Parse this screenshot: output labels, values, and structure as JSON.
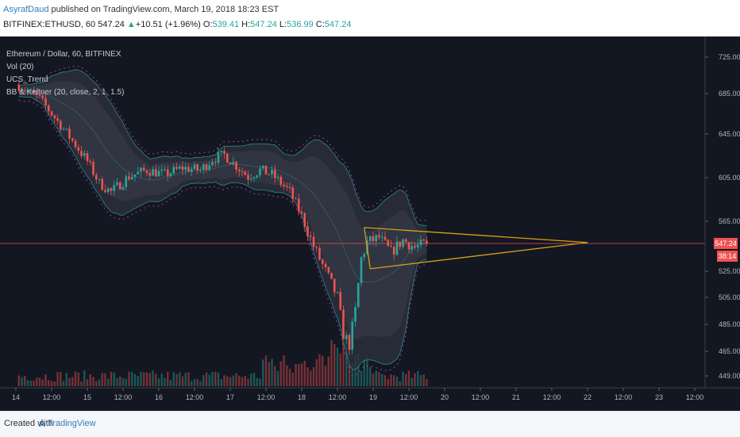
{
  "header": {
    "author": "AsyrafDaud",
    "published": " published on TradingView.com, March 19, 2018 18:23 EST",
    "symbol": "BITFINEX:ETHUSD, 60",
    "last": "547.24",
    "change_arrow": "▲",
    "change": "+10.51 (+1.96%)",
    "open_label": "O:",
    "open": "539.41",
    "high_label": "H:",
    "high": "547.24",
    "low_label": "L:",
    "low": "536.99",
    "close_label": "C:",
    "close": "547.24"
  },
  "legend": {
    "title": "Ethereum / Dollar, 60, BITFINEX",
    "vol": "Vol (20)",
    "ucs": "UCS_Trend",
    "bb": "BB & Keltner (20, close, 2, 1, 1.5)"
  },
  "price_badge": {
    "price": "547.24",
    "countdown": "38:14"
  },
  "footer": {
    "created": "Created with",
    "brand": "TradingView"
  },
  "colors": {
    "background": "#131722",
    "up": "#26a69a",
    "down": "#ef5350",
    "triangle": "#d4a017",
    "band": "#2a8c84",
    "keltner": "#a43bb0",
    "price_line": "#ef5350"
  },
  "chart_data": {
    "type": "candlestick",
    "title": "Ethereum / Dollar, 60, BITFINEX",
    "y_ticks": [
      "725.00",
      "685.00",
      "645.00",
      "605.00",
      "565.00",
      "525.00",
      "505.00",
      "485.00",
      "465.00",
      "449.00"
    ],
    "x_ticks": [
      "14",
      "12:00",
      "15",
      "12:00",
      "16",
      "12:00",
      "17",
      "12:00",
      "18",
      "12:00",
      "19",
      "12:00",
      "20",
      "12:00",
      "21",
      "12:00",
      "22",
      "12:00",
      "23",
      "12:00"
    ],
    "ylim": [
      440,
      735
    ],
    "last_price": 547.24,
    "price_path": [
      {
        "x": "14 00:00",
        "y": 695
      },
      {
        "x": "14 08:00",
        "y": 680
      },
      {
        "x": "14 16:00",
        "y": 650
      },
      {
        "x": "15 00:00",
        "y": 620
      },
      {
        "x": "15 04:00",
        "y": 600
      },
      {
        "x": "15 08:00",
        "y": 592
      },
      {
        "x": "15 14:00",
        "y": 606
      },
      {
        "x": "15 20:00",
        "y": 612
      },
      {
        "x": "16 02:00",
        "y": 608
      },
      {
        "x": "16 08:00",
        "y": 614
      },
      {
        "x": "16 14:00",
        "y": 612
      },
      {
        "x": "16 18:00",
        "y": 622
      },
      {
        "x": "16 22:00",
        "y": 626
      },
      {
        "x": "17 02:00",
        "y": 616
      },
      {
        "x": "17 06:00",
        "y": 606
      },
      {
        "x": "17 10:00",
        "y": 612
      },
      {
        "x": "17 14:00",
        "y": 608
      },
      {
        "x": "17 20:00",
        "y": 592
      },
      {
        "x": "18 00:00",
        "y": 570
      },
      {
        "x": "18 04:00",
        "y": 545
      },
      {
        "x": "18 08:00",
        "y": 525
      },
      {
        "x": "18 12:00",
        "y": 505
      },
      {
        "x": "18 14:00",
        "y": 478
      },
      {
        "x": "18 16:00",
        "y": 470
      },
      {
        "x": "18 18:00",
        "y": 495
      },
      {
        "x": "18 20:00",
        "y": 535
      },
      {
        "x": "18 22:00",
        "y": 548
      },
      {
        "x": "19 02:00",
        "y": 552
      },
      {
        "x": "19 06:00",
        "y": 540
      },
      {
        "x": "19 10:00",
        "y": 550
      },
      {
        "x": "19 14:00",
        "y": 544
      },
      {
        "x": "19 18:00",
        "y": 547.24
      }
    ],
    "triangle": {
      "upper": [
        {
          "x": "18 21:00",
          "y": 560
        },
        {
          "x": "22 00:00",
          "y": 548
        }
      ],
      "lower": [
        {
          "x": "18 23:00",
          "y": 527
        },
        {
          "x": "22 00:00",
          "y": 548
        }
      ]
    },
    "grid": false,
    "legend_position": "top-left"
  }
}
